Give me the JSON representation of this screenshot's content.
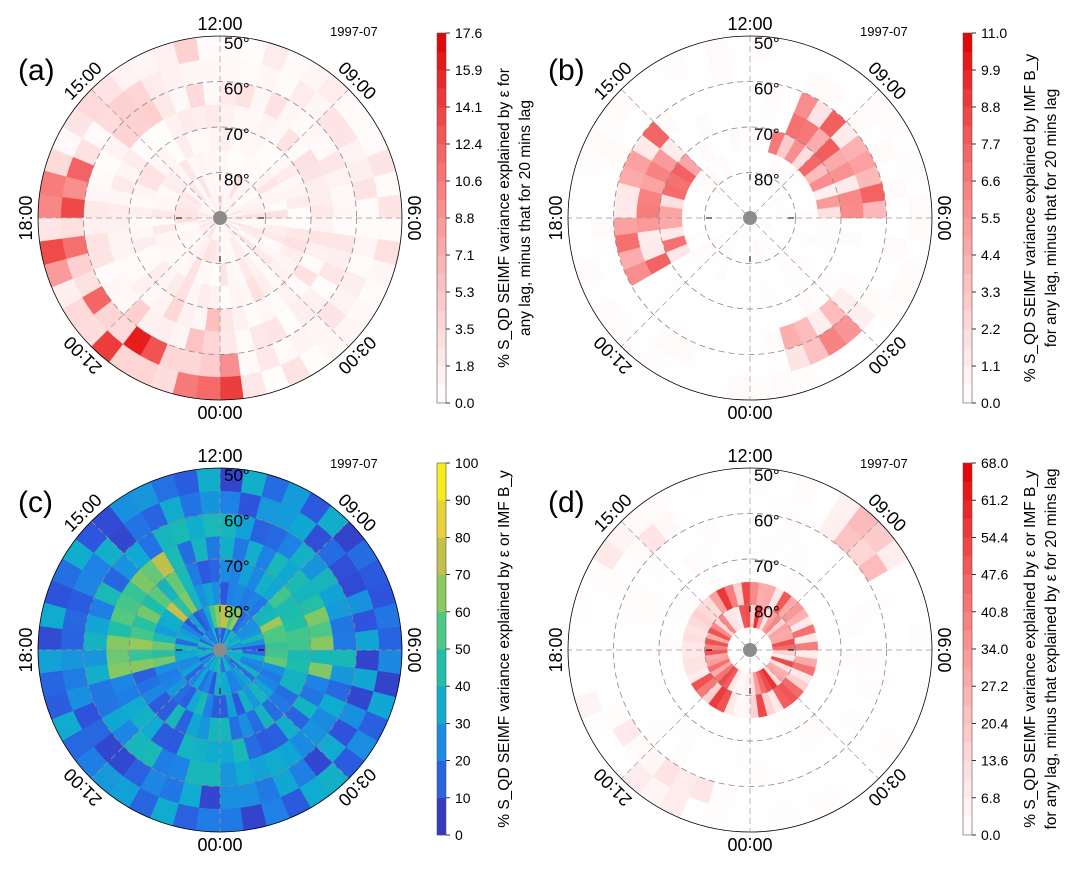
{
  "chart_data": [
    {
      "type": "heatmap",
      "panel_label": "(a)",
      "date_label": "1997-07",
      "theta_labels": [
        "12:00",
        "09:00",
        "06:00",
        "03:00",
        "00:00",
        "21:00",
        "18:00",
        "15:00"
      ],
      "radial_labels": [
        "50°",
        "60°",
        "70°",
        "80°"
      ],
      "colorbar": {
        "ticks": [
          "0.0",
          "1.8",
          "3.5",
          "5.3",
          "7.1",
          "8.8",
          "10.6",
          "12.4",
          "14.1",
          "15.9",
          "17.6"
        ],
        "label_line1": "% S_QD SEIMF variance explained by ε for",
        "label_line2": "any lag, minus that for 20 mins lag",
        "min": 0,
        "max": 17.6
      },
      "colormap": "white-red"
    },
    {
      "type": "heatmap",
      "panel_label": "(b)",
      "date_label": "1997-07",
      "theta_labels": [
        "12:00",
        "09:00",
        "06:00",
        "03:00",
        "00:00",
        "21:00",
        "18:00",
        "15:00"
      ],
      "radial_labels": [
        "50°",
        "60°",
        "70°",
        "80°"
      ],
      "colorbar": {
        "ticks": [
          "0.0",
          "1.1",
          "2.2",
          "3.3",
          "4.4",
          "5.5",
          "6.6",
          "7.7",
          "8.8",
          "9.9",
          "11.0"
        ],
        "label_line1": "% S_QD SEIMF variance explained by IMF B_y",
        "label_line2": "for any lag, minus that for 20 mins lag",
        "min": 0,
        "max": 11.0
      },
      "colormap": "white-red"
    },
    {
      "type": "heatmap",
      "panel_label": "(c)",
      "date_label": "1997-07",
      "theta_labels": [
        "12:00",
        "09:00",
        "06:00",
        "03:00",
        "00:00",
        "21:00",
        "18:00",
        "15:00"
      ],
      "radial_labels": [
        "50°",
        "60°",
        "70°",
        "80°"
      ],
      "colorbar": {
        "ticks": [
          "0",
          "10",
          "20",
          "30",
          "40",
          "50",
          "60",
          "70",
          "80",
          "90",
          "100"
        ],
        "label_line1": "% S_QD SEIMF variance explained by ε or IMF B_y",
        "label_line2": "",
        "min": 0,
        "max": 100
      },
      "colormap": "parula"
    },
    {
      "type": "heatmap",
      "panel_label": "(d)",
      "date_label": "1997-07",
      "theta_labels": [
        "12:00",
        "09:00",
        "06:00",
        "03:00",
        "00:00",
        "21:00",
        "18:00",
        "15:00"
      ],
      "radial_labels": [
        "50°",
        "60°",
        "70°",
        "80°"
      ],
      "colorbar": {
        "ticks": [
          "0.0",
          "6.8",
          "13.6",
          "20.4",
          "27.2",
          "34.0",
          "40.8",
          "47.6",
          "54.4",
          "61.2",
          "68.0"
        ],
        "label_line1": "% S_QD SEIMF variance explained by ε or IMF B_y",
        "label_line2": "for any lag, minus that explained by ε for 20 mins lag",
        "min": 0,
        "max": 68.0
      },
      "colormap": "white-red"
    }
  ]
}
